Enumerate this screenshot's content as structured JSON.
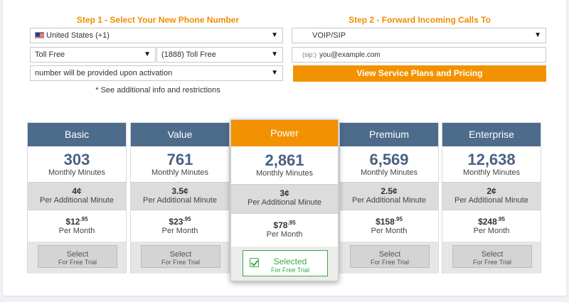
{
  "step1": {
    "title": "Step 1 - Select Your New Phone Number",
    "country": "United States (+1)",
    "number_type": "Toll Free",
    "prefix": "(1888) Toll Free",
    "number": "number will be provided upon activation",
    "note": "* See additional info and restrictions"
  },
  "step2": {
    "title": "Step 2 - Forward Incoming Calls To",
    "method": "VOIP/SIP",
    "sip_prefix": "(sip:)",
    "sip_value": "you@example.com",
    "cta": "View Service Plans and Pricing"
  },
  "plans": [
    {
      "name": "Basic",
      "minutes": "303",
      "minutes_label": "Monthly Minutes",
      "rate": "4¢",
      "rate_label": "Per Additional Minute",
      "price": "$12",
      "cents": ".95",
      "price_label": "Per Month",
      "button": "Select",
      "button_sub": "For Free Trial"
    },
    {
      "name": "Value",
      "minutes": "761",
      "minutes_label": "Monthly Minutes",
      "rate": "3.5¢",
      "rate_label": "Per Additional Minute",
      "price": "$23",
      "cents": ".95",
      "price_label": "Per Month",
      "button": "Select",
      "button_sub": "For Free Trial"
    },
    {
      "name": "Power",
      "minutes": "2,861",
      "minutes_label": "Monthly Minutes",
      "rate": "3¢",
      "rate_label": "Per Additional Minute",
      "price": "$78",
      "cents": ".95",
      "price_label": "Per Month",
      "button": "Selected",
      "button_sub": "For Free Trial"
    },
    {
      "name": "Premium",
      "minutes": "6,569",
      "minutes_label": "Monthly Minutes",
      "rate": "2.5¢",
      "rate_label": "Per Additional Minute",
      "price": "$158",
      "cents": ".95",
      "price_label": "Per Month",
      "button": "Select",
      "button_sub": "For Free Trial"
    },
    {
      "name": "Enterprise",
      "minutes": "12,638",
      "minutes_label": "Monthly Minutes",
      "rate": "2¢",
      "rate_label": "Per Additional Minute",
      "price": "$248",
      "cents": ".95",
      "price_label": "Per Month",
      "button": "Select",
      "button_sub": "For Free Trial"
    }
  ],
  "icons": {
    "dropdown": "▼",
    "flag": "us-flag-icon",
    "check": "check-icon"
  },
  "colors": {
    "accent": "#f39200",
    "header": "#4d6b8a",
    "selected": "#38a84b"
  }
}
